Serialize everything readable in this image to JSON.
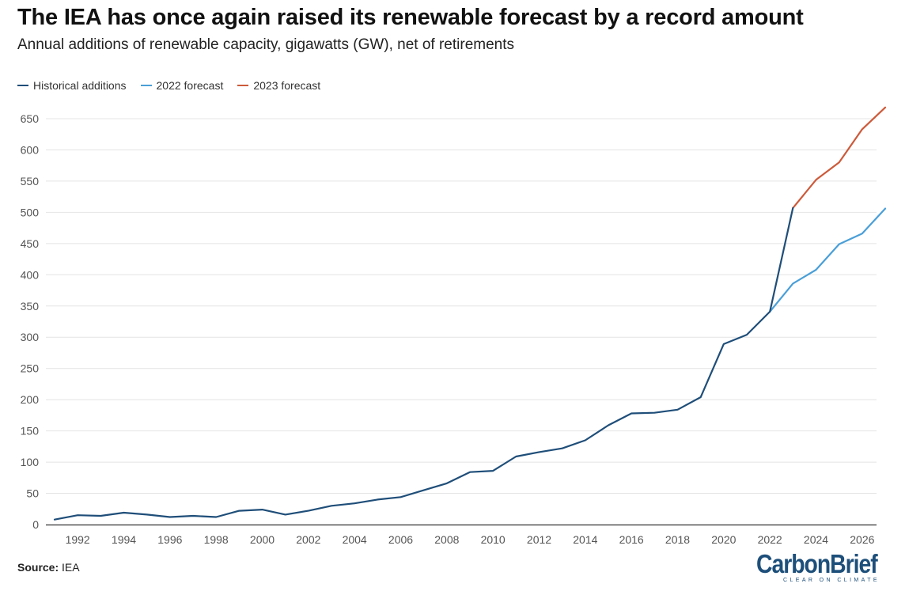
{
  "chart_data": {
    "type": "line",
    "title": "The IEA has once again raised its renewable forecast by a record amount",
    "subtitle": "Annual additions of renewable capacity, gigawatts (GW), net of retirements",
    "ylim": [
      0,
      650
    ],
    "yticks": [
      0,
      50,
      100,
      150,
      200,
      250,
      300,
      350,
      400,
      450,
      500,
      550,
      600,
      650
    ],
    "xlim": [
      1991,
      2027
    ],
    "xticks": [
      1992,
      1994,
      1996,
      1998,
      2000,
      2002,
      2004,
      2006,
      2008,
      2010,
      2012,
      2014,
      2016,
      2018,
      2020,
      2022,
      2024,
      2026
    ],
    "grid": "horizontal",
    "legend_position": "top-left",
    "series": [
      {
        "name": "Historical additions",
        "color": "#1f4e79",
        "x": [
          1991,
          1992,
          1993,
          1994,
          1995,
          1996,
          1997,
          1998,
          1999,
          2000,
          2001,
          2002,
          2003,
          2004,
          2005,
          2006,
          2007,
          2008,
          2009,
          2010,
          2011,
          2012,
          2013,
          2014,
          2015,
          2016,
          2017,
          2018,
          2019,
          2020,
          2021,
          2022,
          2023
        ],
        "y": [
          8,
          15,
          14,
          19,
          16,
          12,
          14,
          12,
          22,
          24,
          16,
          22,
          30,
          34,
          40,
          44,
          55,
          66,
          84,
          86,
          109,
          116,
          122,
          135,
          159,
          178,
          179,
          184,
          204,
          289,
          304,
          341,
          507
        ]
      },
      {
        "name": "2022 forecast",
        "color": "#4a9fd8",
        "x": [
          2022,
          2023,
          2024,
          2025,
          2026,
          2027
        ],
        "y": [
          341,
          386,
          408,
          449,
          466,
          506
        ]
      },
      {
        "name": "2023 forecast",
        "color": "#cc5a3a",
        "x": [
          2023,
          2024,
          2025,
          2026,
          2027
        ],
        "y": [
          507,
          552,
          580,
          633,
          668
        ]
      }
    ]
  },
  "source": {
    "label": "Source:",
    "text": "IEA"
  },
  "logo": {
    "name": "CarbonBrief",
    "tagline": "CLEAR ON CLIMATE"
  }
}
